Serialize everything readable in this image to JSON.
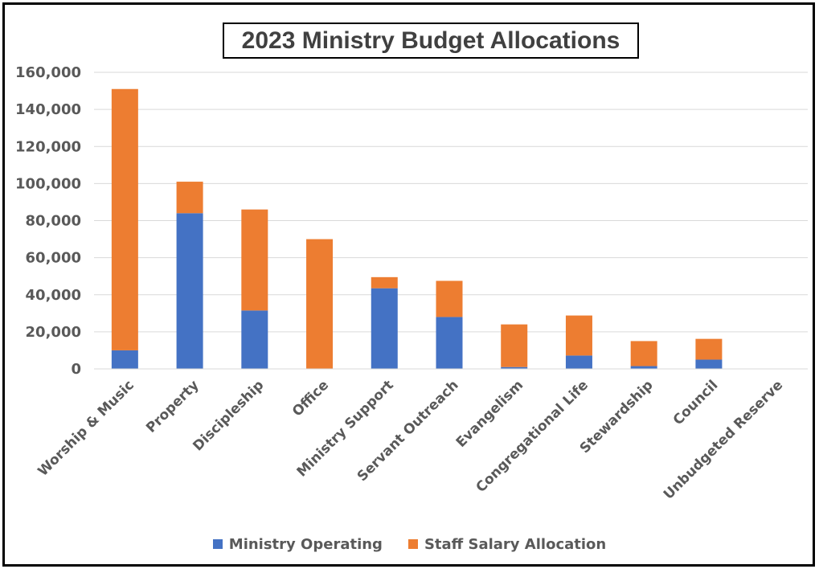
{
  "chart_data": {
    "type": "bar",
    "stacked": true,
    "title": "2023 Ministry Budget Allocations",
    "categories": [
      "Worship & Music",
      "Property",
      "Discipleship",
      "Office",
      "Ministry Support",
      "Servant Outreach",
      "Evangelism",
      "Congregational Life",
      "Stewardship",
      "Council",
      "Unbudgeted Reserve"
    ],
    "series": [
      {
        "name": "Ministry Operating",
        "color": "#4472C4",
        "values": [
          10000,
          84000,
          31500,
          0,
          43500,
          28000,
          1000,
          7200,
          1500,
          5000,
          0
        ]
      },
      {
        "name": "Staff Salary Allocation",
        "color": "#ED7D31",
        "values": [
          141000,
          17000,
          54500,
          70000,
          6000,
          19500,
          23000,
          21600,
          13500,
          11200,
          0
        ]
      }
    ],
    "ylim": [
      0,
      160000
    ],
    "yticks": [
      "0",
      "20,000",
      "40,000",
      "60,000",
      "80,000",
      "100,000",
      "120,000",
      "140,000",
      "160,000"
    ],
    "grid": true,
    "legend_position": "bottom"
  }
}
